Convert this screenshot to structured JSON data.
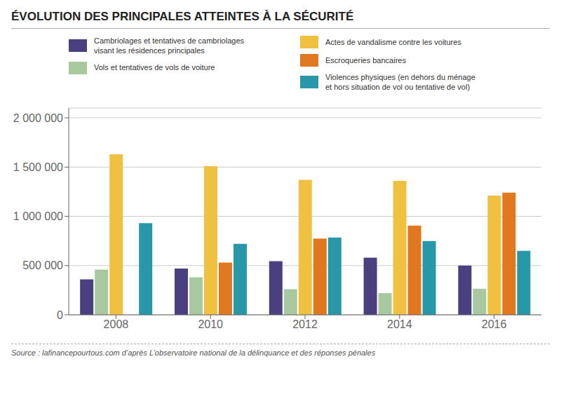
{
  "chart_data": {
    "type": "bar",
    "title": "ÉVOLUTION DES PRINCIPALES ATTEINTES À LA SÉCURITÉ",
    "categories": [
      "2008",
      "2010",
      "2012",
      "2014",
      "2016"
    ],
    "series": [
      {
        "name": "Cambriolages et tentatives de cambriolages\nvisant les résidences principales",
        "color": "#4a4080",
        "values": [
          360000,
          470000,
          545000,
          580000,
          500000
        ]
      },
      {
        "name": "Vols et tentatives de vols de voiture",
        "color": "#a8c8a0",
        "values": [
          460000,
          380000,
          260000,
          220000,
          265000
        ]
      },
      {
        "name": "Actes de vandalisme contre les voitures",
        "color": "#f0c040",
        "values": [
          1630000,
          1510000,
          1370000,
          1360000,
          1210000
        ]
      },
      {
        "name": "Escroqueries bancaires",
        "color": "#e07820",
        "values": [
          0,
          530000,
          775000,
          905000,
          1240000
        ]
      },
      {
        "name": "Violences physiques (en dehors du ménage\net hors situation de vol ou tentative de vol)",
        "color": "#2898a8",
        "values": [
          930000,
          720000,
          785000,
          750000,
          650000
        ]
      }
    ],
    "ylim": [
      0,
      2100000
    ],
    "yticks": [
      0,
      {
        "value": 500000,
        "label": "500 000"
      },
      {
        "value": 1000000,
        "label": "1 000 000"
      },
      {
        "value": 1500000,
        "label": "1 500 000"
      },
      {
        "value": 2000000,
        "label": "2 000 000"
      }
    ],
    "grid": true,
    "legend": "top",
    "annotations": [
      "Source : lafinancepourtous.com d’après L’observatoire national de la délinquance et des réponses pénales"
    ]
  }
}
